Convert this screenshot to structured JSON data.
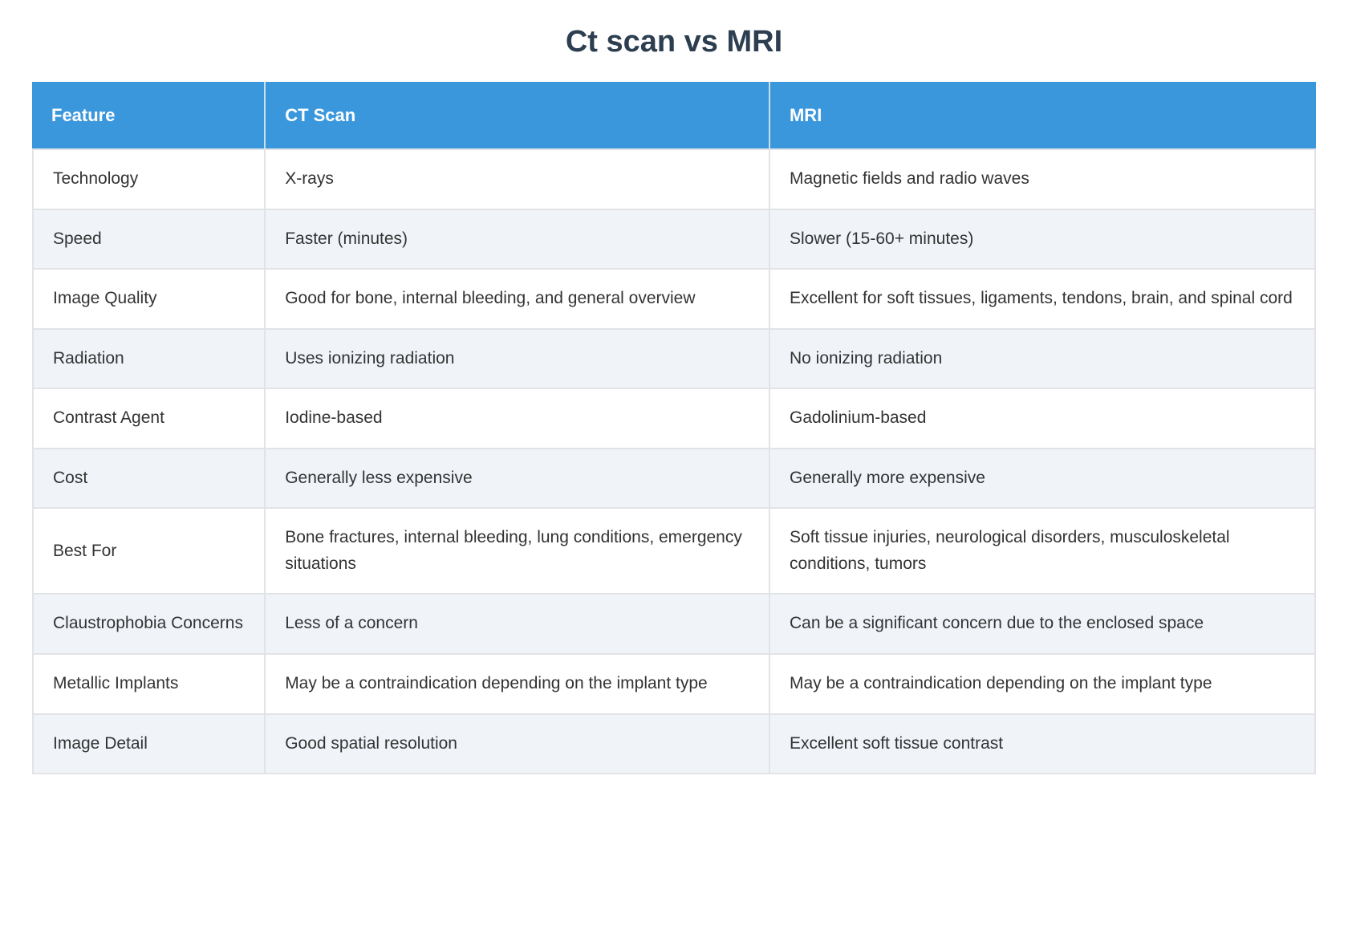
{
  "title": "Ct scan vs MRI",
  "table": {
    "columns": [
      "Feature",
      "CT Scan",
      "MRI"
    ],
    "rows": [
      {
        "feature": "Technology",
        "ct": "X-rays",
        "mri": "Magnetic fields and radio waves"
      },
      {
        "feature": "Speed",
        "ct": "Faster (minutes)",
        "mri": "Slower (15-60+ minutes)"
      },
      {
        "feature": "Image Quality",
        "ct": "Good for bone, internal bleeding, and general overview",
        "mri": "Excellent for soft tissues, ligaments, tendons, brain, and spinal cord"
      },
      {
        "feature": "Radiation",
        "ct": "Uses ionizing radiation",
        "mri": "No ionizing radiation"
      },
      {
        "feature": "Contrast Agent",
        "ct": "Iodine-based",
        "mri": "Gadolinium-based"
      },
      {
        "feature": "Cost",
        "ct": "Generally less expensive",
        "mri": "Generally more expensive"
      },
      {
        "feature": "Best For",
        "ct": "Bone fractures, internal bleeding, lung conditions, emergency situations",
        "mri": "Soft tissue injuries, neurological disorders, musculoskeletal conditions, tumors"
      },
      {
        "feature": "Claustrophobia Concerns",
        "ct": "Less of a concern",
        "mri": "Can be a significant concern due to the enclosed space"
      },
      {
        "feature": "Metallic Implants",
        "ct": "May be a contraindication depending on the implant type",
        "mri": "May be a contraindication depending on the implant type"
      },
      {
        "feature": "Image Detail",
        "ct": "Good spatial resolution",
        "mri": "Excellent soft tissue contrast"
      }
    ]
  },
  "theme": {
    "header_bg": "#3B97DC",
    "header_text": "#FFFFFF",
    "header_divider": "#C9DEF0",
    "stripe_bg": "#F0F4F9",
    "row_bg": "#FFFFFF",
    "border": "#E1E3E6",
    "title_color": "#2C3E50",
    "body_text": "#333333"
  }
}
